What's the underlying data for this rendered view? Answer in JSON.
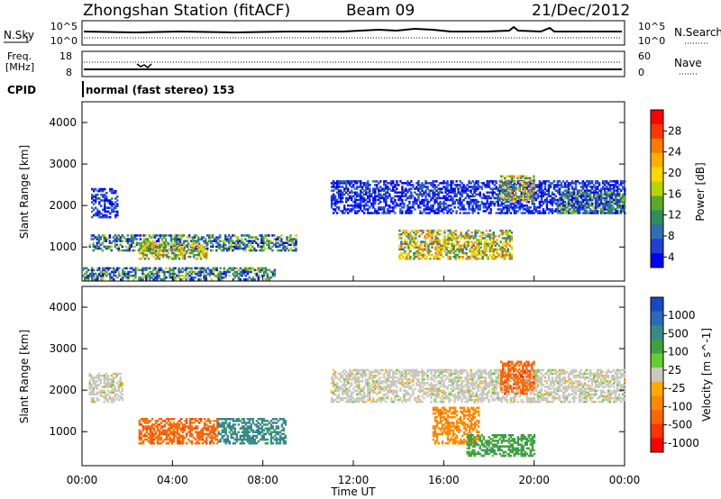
{
  "header": {
    "station": "Zhongshan Station (fitACF)",
    "beam": "Beam 09",
    "date": "21/Dec/2012"
  },
  "top_panels": {
    "nsky_label": "N.Sky",
    "nsearch_label": "N.Search",
    "nsky_ticks": [
      "10^5",
      "10^0"
    ],
    "nsearch_ticks": [
      "10^5",
      "10^0"
    ],
    "freq_label_line1": "Freq.",
    "freq_label_line2": "[MHz]",
    "freq_ticks": [
      "18",
      "8"
    ],
    "nave_label": "Nave",
    "nave_ticks": [
      "60",
      "0"
    ],
    "cpid_label": "CPID",
    "cpid_text": "normal (fast stereo) 153"
  },
  "power_colorbar": {
    "label": "Power [dB]",
    "ticks": [
      "28",
      "24",
      "20",
      "16",
      "12",
      "8",
      "4"
    ],
    "colors": [
      "#ff0000",
      "#ff3a00",
      "#ff7a00",
      "#ffae00",
      "#ffd800",
      "#b7d400",
      "#5aaa2a",
      "#2f8f5a",
      "#2f6fb0",
      "#2040d8",
      "#0000ff"
    ]
  },
  "velocity_colorbar": {
    "label": "Velocity [m s^-1]",
    "ticks": [
      "1000",
      "500",
      "100",
      "25",
      "-25",
      "-100",
      "-500",
      "-1000"
    ],
    "colors": [
      "#1848c8",
      "#2a6ab8",
      "#3a8a86",
      "#3ea040",
      "#66cc33",
      "#c8c8c0",
      "#ffaa00",
      "#ff8800",
      "#ff6600",
      "#ff3300",
      "#ff0000"
    ]
  },
  "x_axis": {
    "label": "Time UT",
    "ticks": [
      "00:00",
      "04:00",
      "08:00",
      "12:00",
      "16:00",
      "20:00",
      "00:00"
    ]
  },
  "chart_data": [
    {
      "type": "heatmap",
      "title": "Zhongshan Station (fitACF)",
      "variable": "Power",
      "xlabel": "Time UT",
      "ylabel": "Slant Range [km]",
      "xlim": [
        "00:00",
        "24:00"
      ],
      "ylim": [
        180,
        4500
      ],
      "y_ticks": [
        1000,
        2000,
        3000,
        4000
      ],
      "colorbar": {
        "label": "Power [dB]",
        "range": [
          0,
          30
        ],
        "ticks": [
          4,
          8,
          12,
          16,
          20,
          24,
          28
        ]
      },
      "echo_regions": [
        {
          "t": [
            0.4,
            1.6
          ],
          "range": [
            1700,
            2400
          ],
          "level": "low"
        },
        {
          "t": [
            0.3,
            9.5
          ],
          "range": [
            900,
            1300
          ],
          "level": "medium"
        },
        {
          "t": [
            2.5,
            5.5
          ],
          "range": [
            700,
            1100
          ],
          "level": "high"
        },
        {
          "t": [
            0.0,
            8.5
          ],
          "range": [
            200,
            500
          ],
          "level": "medium"
        },
        {
          "t": [
            11.0,
            24.0
          ],
          "range": [
            1800,
            2600
          ],
          "level": "low"
        },
        {
          "t": [
            14.0,
            19.0
          ],
          "range": [
            700,
            1400
          ],
          "level": "high"
        },
        {
          "t": [
            18.5,
            20.0
          ],
          "range": [
            2100,
            2700
          ],
          "level": "high"
        },
        {
          "t": [
            21.0,
            24.0
          ],
          "range": [
            1800,
            2300
          ],
          "level": "medium"
        }
      ]
    },
    {
      "type": "heatmap",
      "variable": "Velocity",
      "xlabel": "Time UT",
      "ylabel": "Slant Range [km]",
      "xlim": [
        "00:00",
        "24:00"
      ],
      "ylim": [
        180,
        4500
      ],
      "y_ticks": [
        1000,
        2000,
        3000,
        4000
      ],
      "colorbar": {
        "label": "Velocity [m s^-1]",
        "ticks": [
          1000,
          500,
          100,
          25,
          -25,
          -100,
          -500,
          -1000
        ]
      },
      "echo_regions": [
        {
          "t": [
            0.3,
            1.8
          ],
          "range": [
            1700,
            2400
          ],
          "velocity": "near zero"
        },
        {
          "t": [
            2.5,
            6.0
          ],
          "range": [
            700,
            1300
          ],
          "velocity": -250
        },
        {
          "t": [
            6.0,
            9.0
          ],
          "range": [
            700,
            1300
          ],
          "velocity": 100
        },
        {
          "t": [
            11.0,
            24.0
          ],
          "range": [
            1700,
            2500
          ],
          "velocity": "near zero"
        },
        {
          "t": [
            15.5,
            17.5
          ],
          "range": [
            700,
            1600
          ],
          "velocity": -200
        },
        {
          "t": [
            17.0,
            20.0
          ],
          "range": [
            400,
            900
          ],
          "velocity": 80
        },
        {
          "t": [
            18.5,
            20.0
          ],
          "range": [
            1900,
            2700
          ],
          "velocity": -300
        }
      ]
    },
    {
      "type": "line",
      "variable": "N.Sky / N.Search",
      "ylabel": "N.Sky",
      "y_scale": "log",
      "ylim": [
        1,
        100000
      ],
      "x": [
        "00:00",
        "04:00",
        "08:00",
        "12:00",
        "16:00",
        "20:00",
        "24:00"
      ],
      "series": [
        {
          "name": "N.Sky",
          "values": [
            1000,
            1000,
            1000,
            1000,
            1500,
            1200,
            1000
          ]
        },
        {
          "name": "N.Search",
          "values": [
            30,
            30,
            30,
            30,
            30,
            30,
            30
          ]
        }
      ]
    },
    {
      "type": "line",
      "variable": "Freq. / Nave",
      "ylabel": "Freq. [MHz]",
      "ylim": [
        8,
        18
      ],
      "x": [
        "00:00",
        "04:00",
        "08:00",
        "12:00",
        "16:00",
        "20:00",
        "24:00"
      ],
      "series": [
        {
          "name": "Nave",
          "values": [
            35,
            35,
            35,
            35,
            35,
            35,
            35
          ]
        }
      ]
    }
  ]
}
